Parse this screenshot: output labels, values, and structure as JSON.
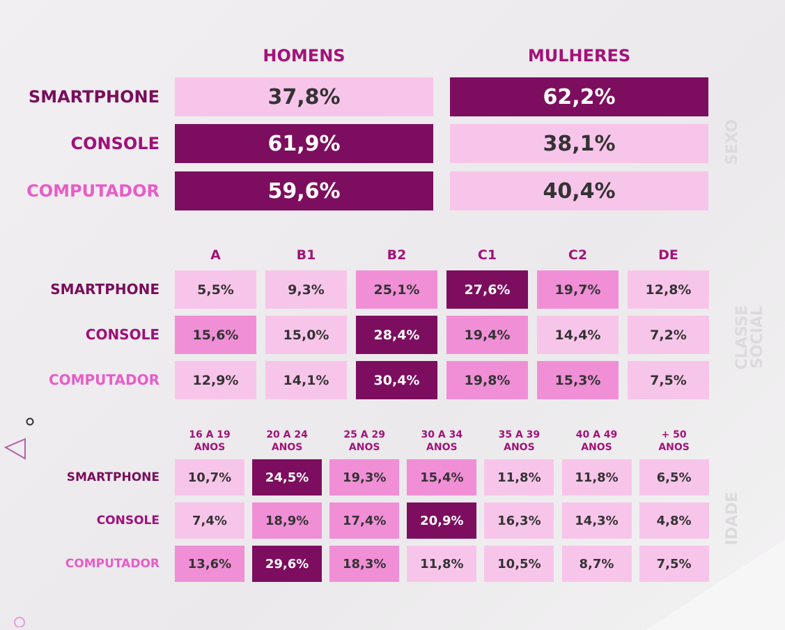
{
  "chart_data": [
    {
      "type": "table",
      "title": "SEXO",
      "columns": [
        "HOMENS",
        "MULHERES"
      ],
      "rows": [
        {
          "label": "SMARTPHONE",
          "key": "smartphone",
          "values": [
            "37,8%",
            "62,2%"
          ],
          "tones": [
            0,
            2
          ]
        },
        {
          "label": "CONSOLE",
          "key": "console",
          "values": [
            "61,9%",
            "38,1%"
          ],
          "tones": [
            2,
            0
          ]
        },
        {
          "label": "COMPUTADOR",
          "key": "computador",
          "values": [
            "59,6%",
            "40,4%"
          ],
          "tones": [
            2,
            0
          ]
        }
      ]
    },
    {
      "type": "table",
      "title": "CLASSE SOCIAL",
      "columns": [
        "A",
        "B1",
        "B2",
        "C1",
        "C2",
        "DE"
      ],
      "rows": [
        {
          "label": "SMARTPHONE",
          "key": "smartphone",
          "values": [
            "5,5%",
            "9,3%",
            "25,1%",
            "27,6%",
            "19,7%",
            "12,8%"
          ],
          "tones": [
            0,
            0,
            1,
            2,
            1,
            0
          ]
        },
        {
          "label": "CONSOLE",
          "key": "console",
          "values": [
            "15,6%",
            "15,0%",
            "28,4%",
            "19,4%",
            "14,4%",
            "7,2%"
          ],
          "tones": [
            1,
            0,
            2,
            1,
            0,
            0
          ]
        },
        {
          "label": "COMPUTADOR",
          "key": "computador",
          "values": [
            "12,9%",
            "14,1%",
            "30,4%",
            "19,8%",
            "15,3%",
            "7,5%"
          ],
          "tones": [
            0,
            0,
            2,
            1,
            1,
            0
          ]
        }
      ]
    },
    {
      "type": "table",
      "title": "IDADE",
      "columns": [
        [
          "16 A 19",
          "ANOS"
        ],
        [
          "20 A 24",
          "ANOS"
        ],
        [
          "25 A 29",
          "ANOS"
        ],
        [
          "30 A 34",
          "ANOS"
        ],
        [
          "35 A 39",
          "ANOS"
        ],
        [
          "40 A 49",
          "ANOS"
        ],
        [
          "+ 50",
          "ANOS"
        ]
      ],
      "rows": [
        {
          "label": "SMARTPHONE",
          "key": "smartphone",
          "values": [
            "10,7%",
            "24,5%",
            "19,3%",
            "15,4%",
            "11,8%",
            "11,8%",
            "6,5%"
          ],
          "tones": [
            0,
            2,
            1,
            1,
            0,
            0,
            0
          ]
        },
        {
          "label": "CONSOLE",
          "key": "console",
          "values": [
            "7,4%",
            "18,9%",
            "17,4%",
            "20,9%",
            "16,3%",
            "14,3%",
            "4,8%"
          ],
          "tones": [
            0,
            1,
            1,
            2,
            0,
            0,
            0
          ]
        },
        {
          "label": "COMPUTADOR",
          "key": "computador",
          "values": [
            "13,6%",
            "29,6%",
            "18,3%",
            "11,8%",
            "10,5%",
            "8,7%",
            "7,5%"
          ],
          "tones": [
            1,
            2,
            1,
            0,
            0,
            0,
            0
          ]
        }
      ]
    }
  ],
  "side_labels": {
    "sexo": "SEXO",
    "classe": [
      "CLASSE",
      "SOCIAL"
    ],
    "idade": "IDADE"
  },
  "colors": {
    "light": "#f8c5ea",
    "mid": "#f08fd6",
    "dark": "#7d0e5f",
    "header": "#a3127a"
  }
}
